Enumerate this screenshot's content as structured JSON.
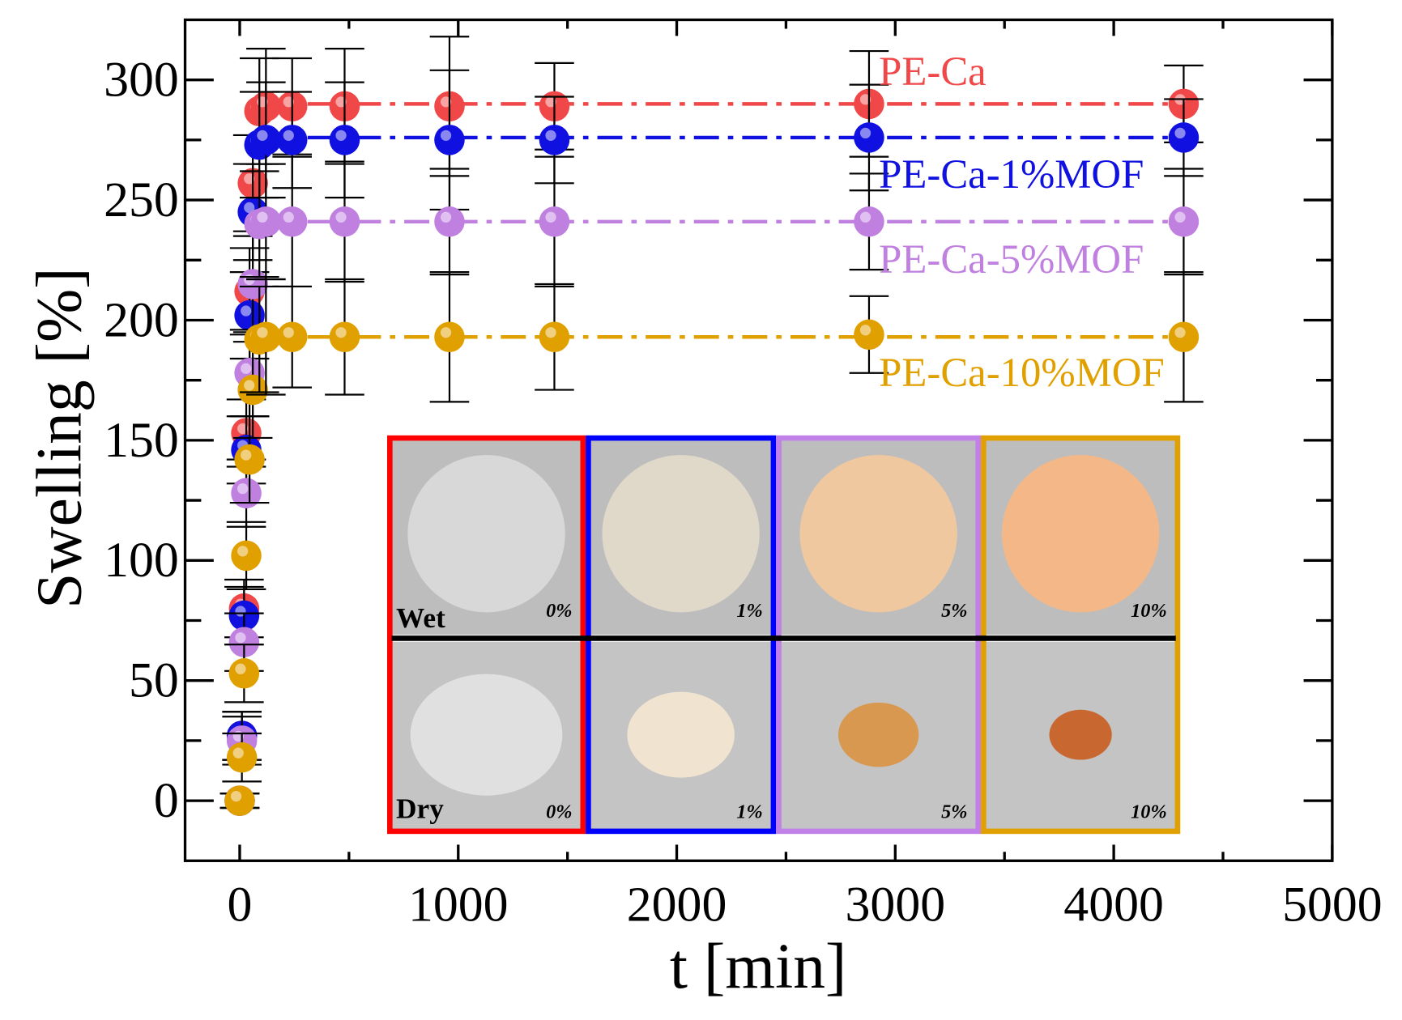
{
  "chart_data": {
    "type": "scatter",
    "xlabel": "t [min]",
    "ylabel": "Swelling [%]",
    "xlim": [
      -250,
      5000
    ],
    "ylim": [
      -25,
      325
    ],
    "xticks": [
      0,
      1000,
      2000,
      3000,
      4000,
      5000
    ],
    "yticks": [
      0,
      50,
      100,
      150,
      200,
      250,
      300
    ],
    "x": [
      0,
      10,
      20,
      30,
      45,
      60,
      90,
      120,
      240,
      480,
      960,
      1440,
      2880,
      4320
    ],
    "series": [
      {
        "name": "PE-Ca",
        "color": "#f04848",
        "values": [
          0,
          27,
          80,
          153,
          212,
          257,
          287,
          289,
          289,
          289,
          289,
          289,
          290,
          290
        ],
        "error": [
          3,
          10,
          12,
          14,
          18,
          20,
          22,
          24,
          20,
          24,
          29,
          18,
          22,
          16
        ]
      },
      {
        "name": "PE-Ca-1%MOF",
        "color": "#1010e0",
        "values": [
          0,
          27,
          77,
          146,
          202,
          245,
          273,
          275,
          275,
          275,
          275,
          275,
          276,
          276
        ],
        "error": [
          3,
          10,
          12,
          14,
          18,
          20,
          22,
          24,
          20,
          24,
          29,
          18,
          22,
          16
        ]
      },
      {
        "name": "PE-Ca-5%MOF",
        "color": "#c080e0",
        "values": [
          0,
          25,
          66,
          128,
          178,
          215,
          240,
          241,
          241,
          241,
          241,
          241,
          241,
          241
        ],
        "error": [
          3,
          10,
          12,
          14,
          18,
          20,
          22,
          24,
          27,
          25,
          22,
          27,
          20,
          22
        ]
      },
      {
        "name": "PE-Ca-10%MOF",
        "color": "#e0a000",
        "values": [
          0,
          18,
          53,
          102,
          142,
          171,
          192,
          193,
          193,
          193,
          193,
          193,
          194,
          193
        ],
        "error": [
          3,
          10,
          12,
          14,
          18,
          20,
          22,
          24,
          21,
          24,
          27,
          22,
          16,
          27
        ]
      }
    ],
    "legend": "right",
    "inset": {
      "row_labels": [
        "Wet",
        "Dry"
      ],
      "panels": [
        {
          "label": "0%",
          "frame": "#ff0000",
          "wet": "#d8d8d8",
          "dry": "#e0e0e0"
        },
        {
          "label": "1%",
          "frame": "#0000ff",
          "wet": "#e0d8c8",
          "dry": "#f0e4d0"
        },
        {
          "label": "5%",
          "frame": "#c080e8",
          "wet": "#f0c8a0",
          "dry": "#d89850"
        },
        {
          "label": "10%",
          "frame": "#e0a000",
          "wet": "#f4b888",
          "dry": "#c86830"
        }
      ]
    }
  }
}
